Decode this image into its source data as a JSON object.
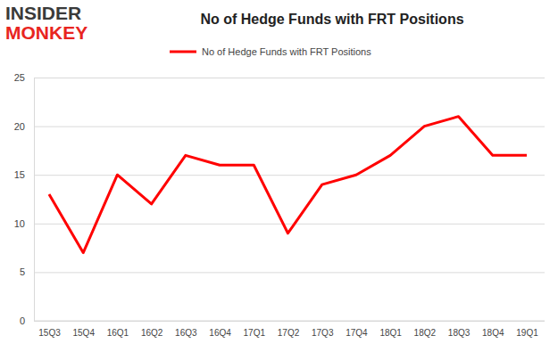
{
  "chart_data": {
    "type": "line",
    "title": "No of Hedge Funds with FRT Positions",
    "annotations": [
      "INSIDER",
      "MONKEY"
    ],
    "categories": [
      "15Q3",
      "15Q4",
      "16Q1",
      "16Q2",
      "16Q3",
      "16Q4",
      "17Q1",
      "17Q2",
      "17Q3",
      "17Q4",
      "18Q1",
      "18Q2",
      "18Q3",
      "18Q4",
      "19Q1"
    ],
    "series": [
      {
        "name": "No of Hedge Funds with FRT Positions",
        "color": "#ff0000",
        "values": [
          13,
          7,
          15,
          12,
          17,
          16,
          16,
          9,
          14,
          15,
          17,
          20,
          21,
          17,
          17
        ]
      }
    ],
    "ylim": [
      0,
      25
    ],
    "yticks": [
      0,
      5,
      10,
      15,
      20,
      25
    ],
    "grid": true,
    "legend": "top"
  }
}
